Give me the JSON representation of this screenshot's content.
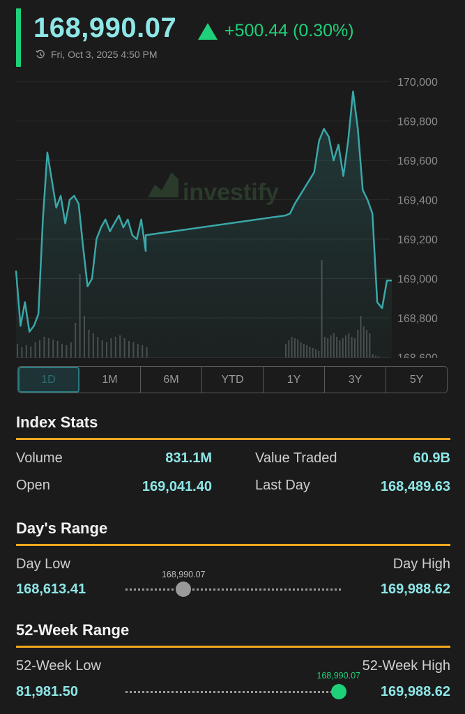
{
  "quote": {
    "price": "168,990.07",
    "change": "+500.44 (0.30%)",
    "timestamp": "Fri, Oct 3, 2025 4:50 PM",
    "up_color": "#1fd07a",
    "price_color": "#8ee6e6"
  },
  "watermark": "investify",
  "chart_data": {
    "type": "line",
    "title": "",
    "y_ticks": [
      "170,000",
      "169,800",
      "169,600",
      "169,400",
      "169,200",
      "169,000",
      "168,800",
      "168,600"
    ],
    "ylim": [
      168600,
      170000
    ],
    "line_color": "#3aa7a8",
    "series": [
      {
        "values": [
          169040,
          168760,
          168880,
          168730,
          168760,
          168820,
          169300,
          169640,
          169500,
          169360,
          169420,
          169280,
          169400,
          169420,
          169380,
          169160,
          168960,
          169000,
          169200,
          169260,
          169300,
          169240,
          169280,
          169320,
          169260,
          169300,
          169220,
          169200,
          169300,
          169140,
          169220,
          169320,
          169330,
          169380,
          169420,
          169460,
          169500,
          169540,
          169700,
          169760,
          169720,
          169600,
          169680,
          169520,
          169700,
          169950,
          169760,
          169450,
          169400,
          169330,
          168880,
          168850,
          168990,
          168990
        ]
      }
    ],
    "volume": [
      20,
      15,
      18,
      16,
      22,
      25,
      30,
      28,
      26,
      24,
      20,
      18,
      22,
      50,
      120,
      60,
      40,
      35,
      30,
      25,
      22,
      28,
      30,
      32,
      28,
      24,
      22,
      20,
      18,
      15,
      20,
      25,
      30,
      28,
      26,
      22,
      20,
      18,
      16,
      14,
      12,
      10,
      140,
      30,
      28,
      32,
      35,
      30,
      25,
      28,
      32,
      35,
      30,
      28,
      40,
      60,
      45,
      40,
      35,
      5,
      3,
      2
    ]
  },
  "ranges": [
    "1D",
    "1M",
    "6M",
    "YTD",
    "1Y",
    "3Y",
    "5Y"
  ],
  "active_range": "1D",
  "index_stats": {
    "title": "Index Stats",
    "volume_label": "Volume",
    "volume_value": "831.1M",
    "value_traded_label": "Value Traded",
    "value_traded_value": "60.9B",
    "open_label": "Open",
    "open_value": "169,041.40",
    "last_day_label": "Last Day",
    "last_day_value": "168,489.63"
  },
  "days_range": {
    "title": "Day's Range",
    "low_label": "Day Low",
    "low_value": "168,613.41",
    "high_label": "Day High",
    "high_value": "169,988.62",
    "current": "168,990.07",
    "position": 0.27
  },
  "week52_range": {
    "title": "52-Week Range",
    "low_label": "52-Week Low",
    "low_value": "81,981.50",
    "high_label": "52-Week High",
    "high_value": "169,988.62",
    "current": "168,990.07",
    "position": 0.99
  },
  "colors": {
    "accent_gold": "#f0a81e",
    "teal": "#8ee6e6",
    "green": "#1fd07a",
    "background": "#1b1b1b"
  }
}
